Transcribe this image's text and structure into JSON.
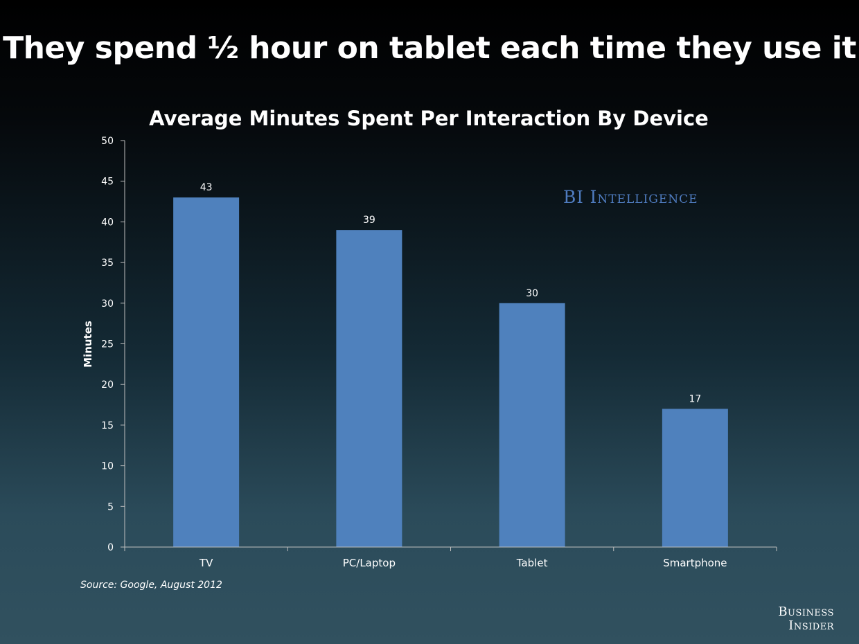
{
  "slide": {
    "title": "They spend ½ hour on tablet each time they use it",
    "source": "Source: Google, August 2012",
    "watermark": "BI Intelligence",
    "brand_line1": "Business",
    "brand_line2": "Insider"
  },
  "chart_data": {
    "type": "bar",
    "title": "Average Minutes Spent Per Interaction By Device",
    "xlabel": "",
    "ylabel": "Minutes",
    "categories": [
      "TV",
      "PC/Laptop",
      "Tablet",
      "Smartphone"
    ],
    "values": [
      43,
      39,
      30,
      17
    ],
    "data_labels": [
      "43",
      "39",
      "30",
      "17"
    ],
    "ylim": [
      0,
      50
    ],
    "yticks": [
      0,
      5,
      10,
      15,
      20,
      25,
      30,
      35,
      40,
      45,
      50
    ],
    "grid": false,
    "legend": "none",
    "colors": {
      "bar": "#4f81bd",
      "axis": "#bfbfbf",
      "text": "#ffffff"
    }
  }
}
